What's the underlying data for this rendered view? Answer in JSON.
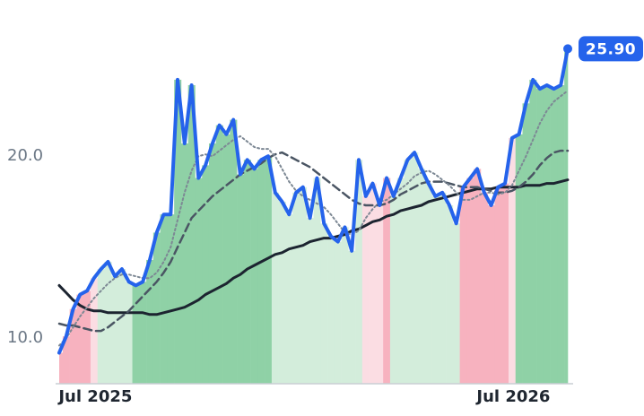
{
  "chart_data": {
    "type": "line",
    "categories": [
      null,
      null,
      null,
      null,
      null,
      null,
      "Jul 2025",
      null,
      null,
      null,
      null,
      null,
      null,
      null,
      null,
      null,
      null,
      null,
      null,
      null,
      null,
      null,
      null,
      null,
      null,
      null,
      null,
      null,
      null,
      null,
      null,
      null,
      null,
      null,
      null,
      null,
      null,
      null,
      null,
      null,
      null,
      null,
      null,
      null,
      null,
      null,
      null,
      null,
      null,
      null,
      null,
      null,
      null,
      null,
      null,
      null,
      null,
      null,
      null,
      null,
      null,
      null,
      null,
      null,
      null,
      null,
      "Jul 2026",
      null,
      null,
      null,
      null,
      null,
      null,
      null
    ],
    "ylim": [
      7.5,
      27.2
    ],
    "yticks": [
      {
        "value": 10,
        "label": "10.0"
      },
      {
        "value": 20,
        "label": "20.0"
      }
    ],
    "series": [
      {
        "color": "#2563eb",
        "style": "solid",
        "width": 4,
        "values": [
          9.2,
          10.1,
          11.6,
          12.4,
          12.6,
          13.3,
          13.8,
          14.2,
          13.4,
          13.8,
          13.1,
          12.9,
          13.1,
          14.3,
          15.8,
          16.8,
          16.8,
          24.2,
          20.7,
          23.9,
          18.8,
          19.5,
          20.7,
          21.7,
          21.2,
          22.0,
          19.0,
          19.8,
          19.3,
          19.8,
          20.0,
          18.0,
          17.5,
          16.8,
          18.0,
          18.3,
          16.6,
          18.8,
          16.3,
          15.6,
          15.3,
          16.1,
          14.8,
          19.8,
          17.8,
          18.5,
          17.3,
          18.8,
          17.8,
          18.8,
          19.8,
          20.2,
          19.3,
          18.5,
          17.8,
          18.0,
          17.3,
          16.3,
          18.3,
          18.8,
          19.3,
          18.0,
          17.3,
          18.3,
          18.5,
          21.0,
          21.2,
          22.9,
          24.2,
          23.7,
          23.9,
          23.7,
          23.9,
          25.9
        ],
        "value_labels": [
          null,
          null,
          null,
          null,
          null,
          null,
          null,
          null,
          null,
          null,
          null,
          null,
          null,
          null,
          null,
          null,
          null,
          null,
          null,
          null,
          null,
          null,
          null,
          null,
          null,
          null,
          null,
          null,
          null,
          null,
          null,
          null,
          null,
          null,
          null,
          null,
          null,
          null,
          null,
          null,
          null,
          null,
          null,
          null,
          null,
          null,
          null,
          null,
          null,
          null,
          null,
          null,
          null,
          null,
          null,
          null,
          null,
          null,
          null,
          null,
          null,
          null,
          null,
          null,
          null,
          null,
          null,
          null,
          null,
          null,
          null,
          null,
          null,
          "25.90"
        ],
        "band_colors": [
          "#f7b2bf",
          "#f7b2bf",
          "#f7b2bf",
          "#f7b2bf",
          "#f7b2bf",
          "#fbdde3",
          "#d3eddb",
          "#d3eddb",
          "#d3eddb",
          "#d3eddb",
          "#d3eddb",
          "#8fd1a6",
          "#8fd1a6",
          "#8fd1a6",
          "#8fd1a6",
          "#8fd1a6",
          "#8fd1a6",
          "#8fd1a6",
          "#8fd1a6",
          "#8fd1a6",
          "#8fd1a6",
          "#8fd1a6",
          "#8fd1a6",
          "#8fd1a6",
          "#8fd1a6",
          "#8fd1a6",
          "#8fd1a6",
          "#8fd1a6",
          "#8fd1a6",
          "#8fd1a6",
          "#8fd1a6",
          "#d3eddb",
          "#d3eddb",
          "#d3eddb",
          "#d3eddb",
          "#d3eddb",
          "#d3eddb",
          "#d3eddb",
          "#d3eddb",
          "#d3eddb",
          "#d3eddb",
          "#d3eddb",
          "#d3eddb",
          "#d3eddb",
          "#fbdde3",
          "#fbdde3",
          "#fbdde3",
          "#f7b2bf",
          "#d3eddb",
          "#d3eddb",
          "#d3eddb",
          "#d3eddb",
          "#d3eddb",
          "#d3eddb",
          "#d3eddb",
          "#d3eddb",
          "#d3eddb",
          "#d3eddb",
          "#f7b2bf",
          "#f7b2bf",
          "#f7b2bf",
          "#f7b2bf",
          "#f7b2bf",
          "#f7b2bf",
          "#f7b2bf",
          "#fbdde3",
          "#8fd1a6",
          "#8fd1a6",
          "#8fd1a6",
          "#8fd1a6",
          "#8fd1a6",
          "#8fd1a6",
          "#8fd1a6",
          "#8fd1a6"
        ]
      },
      {
        "color": "#7d8894",
        "style": "dotted",
        "width": 2,
        "values": [
          9.6,
          10.0,
          10.6,
          11.2,
          11.7,
          12.2,
          12.6,
          13.0,
          13.3,
          13.5,
          13.5,
          13.4,
          13.3,
          13.3,
          13.6,
          14.2,
          15.0,
          16.5,
          18.0,
          19.2,
          20.0,
          20.1,
          20.0,
          20.3,
          20.6,
          20.9,
          21.1,
          20.8,
          20.5,
          20.4,
          20.4,
          20.0,
          19.3,
          18.6,
          18.1,
          17.8,
          17.6,
          17.4,
          17.2,
          16.8,
          16.3,
          15.8,
          15.7,
          15.9,
          16.6,
          17.1,
          17.5,
          17.6,
          17.9,
          18.2,
          18.5,
          18.9,
          19.1,
          19.2,
          19.0,
          18.7,
          18.4,
          18.0,
          17.6,
          17.6,
          17.8,
          18.0,
          18.0,
          17.9,
          18.0,
          18.4,
          19.2,
          20.0,
          20.9,
          21.8,
          22.5,
          23.0,
          23.3,
          23.6
        ]
      },
      {
        "color": "#4a5563",
        "style": "dashed",
        "width": 2.5,
        "values": [
          10.8,
          10.7,
          10.7,
          10.6,
          10.5,
          10.4,
          10.4,
          10.6,
          10.9,
          11.2,
          11.5,
          11.9,
          12.3,
          12.7,
          13.1,
          13.6,
          14.2,
          15.0,
          15.8,
          16.6,
          17.0,
          17.4,
          17.8,
          18.1,
          18.4,
          18.7,
          19.0,
          19.2,
          19.4,
          19.6,
          19.9,
          20.1,
          20.2,
          20.0,
          19.8,
          19.6,
          19.4,
          19.1,
          18.8,
          18.5,
          18.2,
          17.9,
          17.6,
          17.4,
          17.3,
          17.3,
          17.3,
          17.4,
          17.6,
          17.9,
          18.1,
          18.3,
          18.5,
          18.6,
          18.6,
          18.6,
          18.5,
          18.4,
          18.3,
          18.3,
          18.3,
          18.2,
          18.1,
          18.0,
          18.0,
          18.1,
          18.3,
          18.6,
          19.0,
          19.5,
          19.9,
          20.2,
          20.3,
          20.3
        ]
      },
      {
        "color": "#1c2430",
        "style": "solid",
        "width": 3,
        "values": [
          12.9,
          12.5,
          12.1,
          11.8,
          11.6,
          11.5,
          11.5,
          11.4,
          11.4,
          11.4,
          11.4,
          11.4,
          11.4,
          11.3,
          11.3,
          11.4,
          11.5,
          11.6,
          11.7,
          11.9,
          12.1,
          12.4,
          12.6,
          12.8,
          13.0,
          13.3,
          13.5,
          13.8,
          14.0,
          14.2,
          14.4,
          14.6,
          14.7,
          14.9,
          15.0,
          15.1,
          15.3,
          15.4,
          15.5,
          15.5,
          15.6,
          15.7,
          15.9,
          16.0,
          16.2,
          16.4,
          16.5,
          16.7,
          16.8,
          17.0,
          17.1,
          17.2,
          17.3,
          17.5,
          17.6,
          17.7,
          17.8,
          17.9,
          18.0,
          18.1,
          18.2,
          18.2,
          18.2,
          18.3,
          18.3,
          18.3,
          18.3,
          18.4,
          18.4,
          18.4,
          18.5,
          18.5,
          18.6,
          18.7
        ]
      }
    ]
  }
}
